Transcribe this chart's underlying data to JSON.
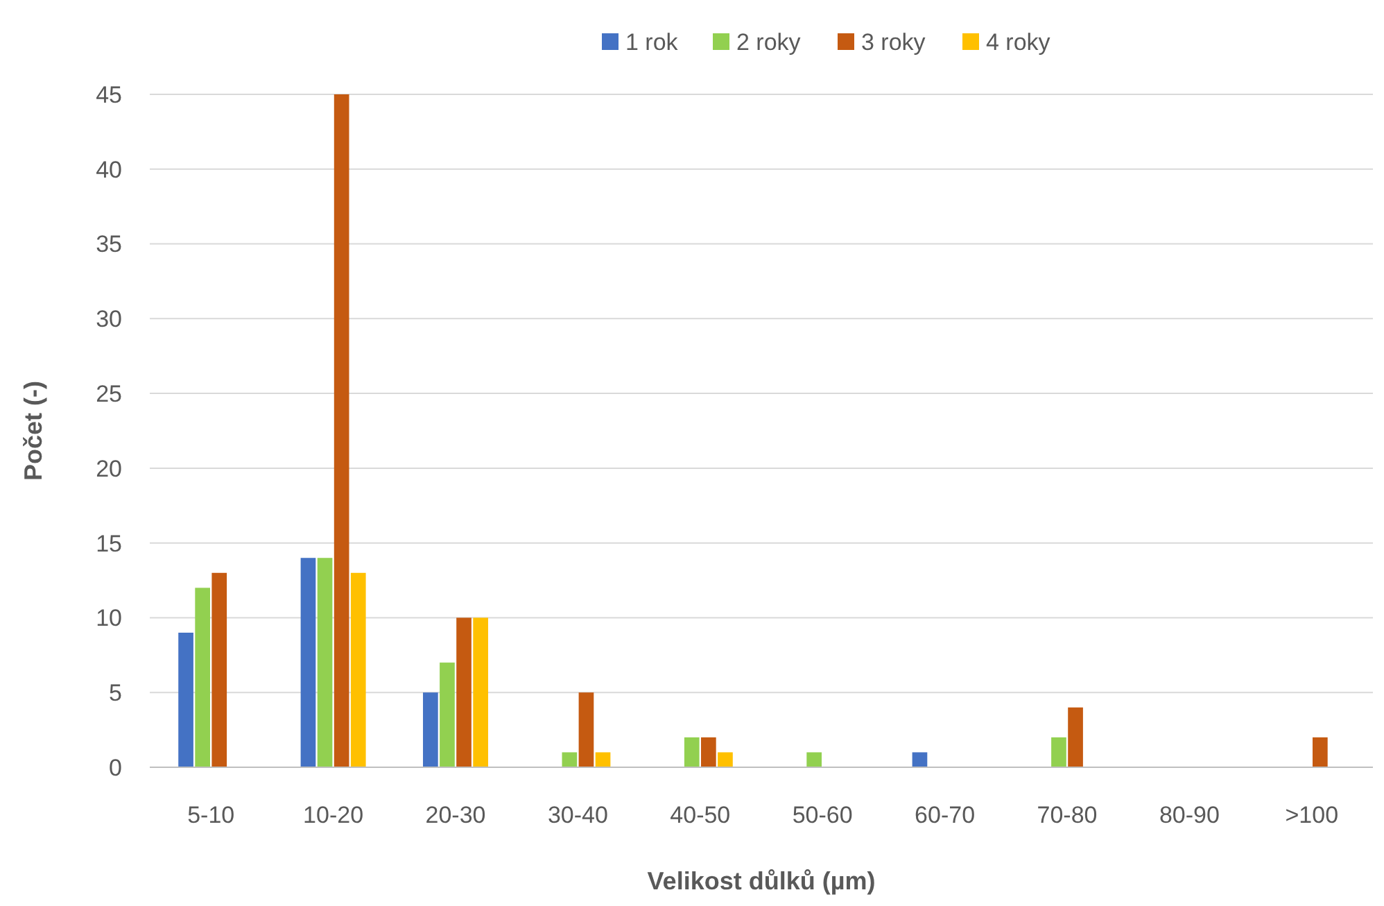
{
  "chart_data": {
    "type": "bar",
    "xlabel": "Velikost důlků (µm)",
    "ylabel": "Počet (-)",
    "categories": [
      "5-10",
      "10-20",
      "20-30",
      "30-40",
      "40-50",
      "50-60",
      "60-70",
      "70-80",
      "80-90",
      ">100"
    ],
    "series": [
      {
        "name": "1 rok",
        "color": "#4472c4",
        "values": [
          9,
          14,
          5,
          0,
          0,
          0,
          1,
          0,
          0,
          0
        ]
      },
      {
        "name": "2 roky",
        "color": "#92d050",
        "values": [
          12,
          14,
          7,
          1,
          2,
          1,
          0,
          2,
          0,
          0
        ]
      },
      {
        "name": "3 roky",
        "color": "#c55a11",
        "values": [
          13,
          45,
          10,
          5,
          2,
          0,
          0,
          4,
          0,
          2
        ]
      },
      {
        "name": "4 roky",
        "color": "#ffc000",
        "values": [
          0,
          13,
          10,
          1,
          1,
          0,
          0,
          0,
          0,
          0
        ]
      }
    ],
    "ylim": [
      0,
      45
    ],
    "yticks": [
      0,
      5,
      10,
      15,
      20,
      25,
      30,
      35,
      40,
      45
    ],
    "grid": "y",
    "legend": "top"
  }
}
